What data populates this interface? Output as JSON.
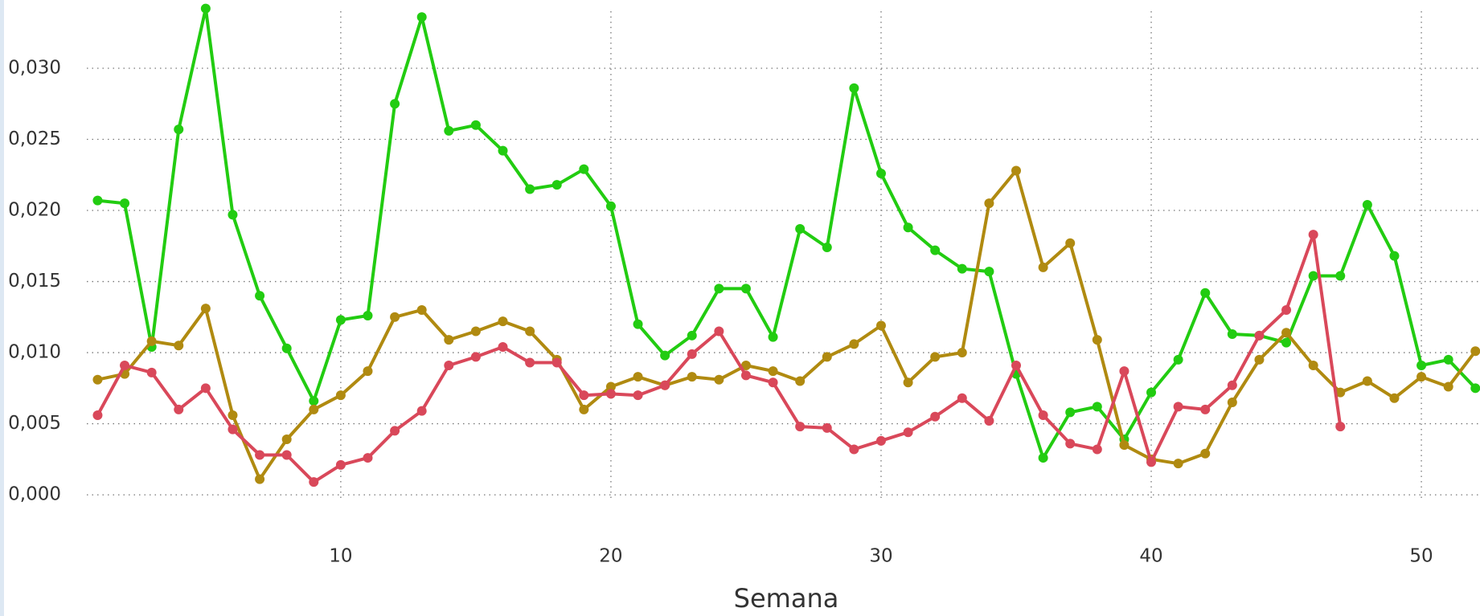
{
  "chart_data": {
    "type": "line",
    "x_label": "Semana",
    "x": [
      1,
      2,
      3,
      4,
      5,
      6,
      7,
      8,
      9,
      10,
      11,
      12,
      13,
      14,
      15,
      16,
      17,
      18,
      19,
      20,
      21,
      22,
      23,
      24,
      25,
      26,
      27,
      28,
      29,
      30,
      31,
      32,
      33,
      34,
      35,
      36,
      37,
      38,
      39,
      40,
      41,
      42,
      43,
      44,
      45,
      46,
      47,
      48,
      49,
      50,
      51,
      52
    ],
    "series": [
      {
        "color": "#22cc11",
        "values": [
          0.0207,
          0.0205,
          0.0104,
          0.0257,
          0.0342,
          0.0197,
          0.014,
          0.0103,
          0.0066,
          0.0123,
          0.0126,
          0.0275,
          0.0336,
          0.0256,
          0.026,
          0.0242,
          0.0215,
          0.0218,
          0.0229,
          0.0203,
          0.012,
          0.0098,
          0.0112,
          0.0145,
          0.0145,
          0.0111,
          0.0187,
          0.0174,
          0.0286,
          0.0226,
          0.0188,
          0.0172,
          0.0159,
          0.0157,
          0.0085,
          0.0026,
          0.0058,
          0.0062,
          0.0039,
          0.0072,
          0.0095,
          0.0142,
          0.0113,
          0.0112,
          0.0107,
          0.0154,
          0.0154,
          0.0204,
          0.0168,
          0.0091,
          0.0095,
          0.0075
        ]
      },
      {
        "color": "#b08a10",
        "values": [
          0.0081,
          0.0085,
          0.0108,
          0.0105,
          0.0131,
          0.0056,
          0.0011,
          0.0039,
          0.006,
          0.007,
          0.0087,
          0.0125,
          0.013,
          0.0109,
          0.0115,
          0.0122,
          0.0115,
          0.0095,
          0.006,
          0.0076,
          0.0083,
          0.0077,
          0.0083,
          0.0081,
          0.0091,
          0.0087,
          0.008,
          0.0097,
          0.0106,
          0.0119,
          0.0079,
          0.0097,
          0.01,
          0.0205,
          0.0228,
          0.016,
          0.0177,
          0.0109,
          0.0035,
          0.0025,
          0.0022,
          0.0029,
          0.0065,
          0.0095,
          0.0114,
          0.0091,
          0.0072,
          0.008,
          0.0068,
          0.0083,
          0.0076,
          0.0101
        ]
      },
      {
        "color": "#d9485a",
        "values": [
          0.0056,
          0.0091,
          0.0086,
          0.006,
          0.0075,
          0.0046,
          0.0028,
          0.0028,
          0.0009,
          0.0021,
          0.0026,
          0.0045,
          0.0059,
          0.0091,
          0.0097,
          0.0104,
          0.0093,
          0.0093,
          0.007,
          0.0071,
          0.007,
          0.0077,
          0.0099,
          0.0115,
          0.0084,
          0.0079,
          0.0048,
          0.0047,
          0.0032,
          0.0038,
          0.0044,
          0.0055,
          0.0068,
          0.0052,
          0.0091,
          0.0056,
          0.0036,
          0.0032,
          0.0087,
          0.0023,
          0.0062,
          0.006,
          0.0077,
          0.0112,
          0.013,
          0.0183,
          0.0048,
          null,
          null,
          null,
          null,
          null
        ]
      }
    ],
    "xlim": [
      0.6,
      52.17
    ],
    "xticks": [
      10,
      20,
      30,
      40,
      50
    ],
    "ylim": [
      -0.00135,
      0.0348
    ],
    "yticks": [
      {
        "value": 0,
        "label": "0,000"
      },
      {
        "value": 0.005,
        "label": "0,005"
      },
      {
        "value": 0.01,
        "label": "0,010"
      },
      {
        "value": 0.015,
        "label": "0,015"
      },
      {
        "value": 0.02,
        "label": "0,020"
      },
      {
        "value": 0.025,
        "label": "0,025"
      },
      {
        "value": 0.03,
        "label": "0,030"
      }
    ],
    "grid": true
  }
}
